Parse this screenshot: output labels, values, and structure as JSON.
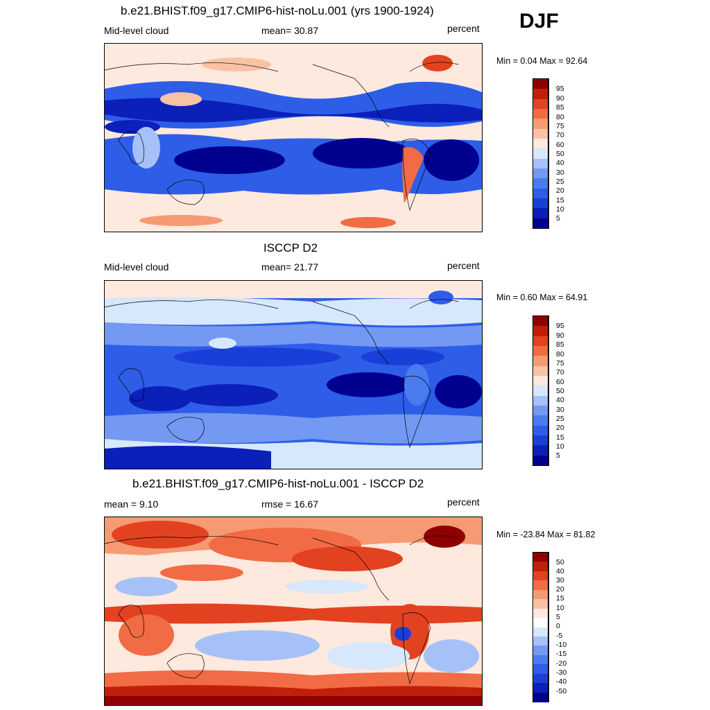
{
  "season": "DJF",
  "colors": {
    "seq": [
      "#00008f",
      "#0b1fb9",
      "#1a3fd8",
      "#2e5de8",
      "#4a7cf0",
      "#7399f2",
      "#a6c1f7",
      "#d7e7fc",
      "#fde9dd",
      "#f9c2a5",
      "#f59a73",
      "#f16b45",
      "#e34220",
      "#c11f0b",
      "#8f0000"
    ],
    "diff": [
      "#00008f",
      "#0b1fb9",
      "#1a3fd8",
      "#2e5de8",
      "#4a7cf0",
      "#7399f2",
      "#a6c1f7",
      "#d7e7fc",
      "#ffffff",
      "#fde9dd",
      "#f9c2a5",
      "#f59a73",
      "#f16b45",
      "#e34220",
      "#c11f0b",
      "#8f0000"
    ]
  },
  "panels": [
    {
      "id": "model",
      "title": "b.e21.BHIST.f09_g17.CMIP6-hist-noLu.001 (yrs 1900-1924)",
      "left_label": "Mid-level cloud",
      "center_label": "mean=  30.87",
      "right_label": "percent",
      "minmax": "Min =   0.04 Max =  92.64",
      "levels": [
        "95",
        "90",
        "85",
        "80",
        "75",
        "70",
        "60",
        "50",
        "40",
        "30",
        "25",
        "20",
        "15",
        "10",
        "5"
      ]
    },
    {
      "id": "obs",
      "title": "ISCCP D2",
      "left_label": "Mid-level cloud",
      "center_label": "mean=  21.77",
      "right_label": "percent",
      "minmax": "Min =   0.60 Max =  64.91",
      "levels": [
        "95",
        "90",
        "85",
        "80",
        "75",
        "70",
        "60",
        "50",
        "40",
        "30",
        "25",
        "20",
        "15",
        "10",
        "5"
      ]
    },
    {
      "id": "diff",
      "title": "b.e21.BHIST.f09_g17.CMIP6-hist-noLu.001 - ISCCP D2",
      "left_label": "mean =   9.10",
      "center_label": "rmse =  16.67",
      "right_label": "percent",
      "minmax": "Min = -23.84 Max =  81.82",
      "levels": [
        "50",
        "40",
        "30",
        "20",
        "15",
        "10",
        "5",
        "0",
        "-5",
        "-10",
        "-15",
        "-20",
        "-30",
        "-40",
        "-50"
      ]
    }
  ]
}
